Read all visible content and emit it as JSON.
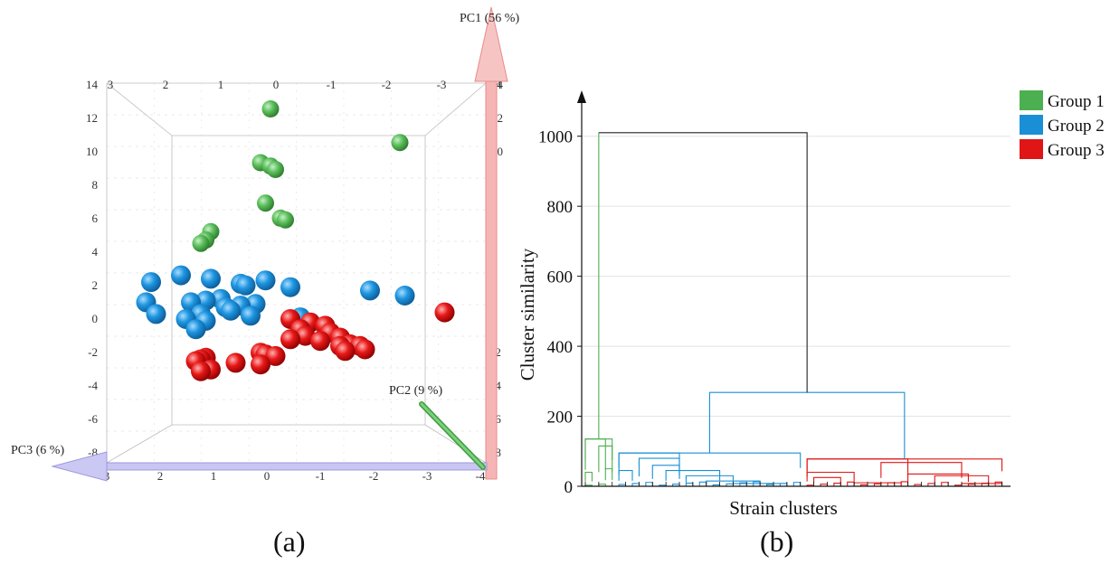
{
  "figure": {
    "panel_a_label": "(a)",
    "panel_b_label": "(b)"
  },
  "colors": {
    "group1": "#4caf50",
    "group2": "#1a8fd6",
    "group3": "#e01515",
    "dendro_root": "#222222",
    "pc1_arrow": "#f4a6a6",
    "pc2_arrow": "#5cb85c",
    "pc3_arrow": "#b9b5ee"
  },
  "chart_data": [
    {
      "type": "scatter",
      "subtype": "3d-pca",
      "axes": {
        "pc1": {
          "label": "PC1 (56 %)",
          "ticks": [
            "14",
            "12",
            "10",
            "8",
            "6",
            "4",
            "2",
            "0",
            "-2",
            "-4",
            "-6",
            "-8"
          ]
        },
        "pc2": {
          "label": "PC2 (9 %)",
          "ticks": [
            "3",
            "2",
            "1",
            "0",
            "-1",
            "-2",
            "-3",
            "-4"
          ]
        },
        "pc3": {
          "label": "PC3 (6 %)",
          "ticks": [
            "3",
            "2",
            "1",
            "0",
            "-1",
            "-2",
            "-3",
            "-4"
          ]
        }
      },
      "series": [
        {
          "name": "Group 1",
          "color": "#4caf50",
          "points": [
            [
              12.5,
              0.2
            ],
            [
              10.5,
              -2.4
            ],
            [
              9.3,
              0.4
            ],
            [
              9.1,
              0.2
            ],
            [
              8.9,
              0.1
            ],
            [
              6.9,
              0.3
            ],
            [
              6.0,
              0.0
            ],
            [
              5.9,
              -0.1
            ],
            [
              5.2,
              1.4
            ],
            [
              4.7,
              1.5
            ],
            [
              4.5,
              1.6
            ]
          ]
        },
        {
          "name": "Group 2",
          "color": "#1a8fd6",
          "points": [
            [
              2.6,
              2.0
            ],
            [
              2.4,
              1.4
            ],
            [
              2.2,
              2.6
            ],
            [
              2.1,
              0.8
            ],
            [
              2.3,
              0.3
            ],
            [
              2.0,
              0.7
            ],
            [
              1.9,
              -0.2
            ],
            [
              1.7,
              -1.8
            ],
            [
              1.4,
              -2.5
            ],
            [
              1.2,
              1.2
            ],
            [
              1.1,
              1.5
            ],
            [
              1.0,
              1.8
            ],
            [
              1.0,
              2.7
            ],
            [
              0.9,
              0.5
            ],
            [
              0.8,
              0.8
            ],
            [
              0.7,
              1.1
            ],
            [
              0.5,
              1.0
            ],
            [
              0.3,
              1.6
            ],
            [
              0.3,
              2.5
            ],
            [
              0.2,
              0.6
            ],
            [
              0.1,
              -0.4
            ],
            [
              0.0,
              1.9
            ],
            [
              -0.1,
              1.5
            ],
            [
              -0.6,
              1.7
            ]
          ]
        },
        {
          "name": "Group 3",
          "color": "#e01515",
          "points": [
            [
              0.4,
              -3.3
            ],
            [
              0.0,
              -0.2
            ],
            [
              -0.2,
              -0.6
            ],
            [
              -0.4,
              -0.9
            ],
            [
              -0.6,
              -0.4
            ],
            [
              -0.8,
              -1.0
            ],
            [
              -1.0,
              -0.5
            ],
            [
              -1.1,
              -1.2
            ],
            [
              -1.2,
              -0.2
            ],
            [
              -1.3,
              -0.8
            ],
            [
              -1.5,
              -1.4
            ],
            [
              -1.6,
              -1.2
            ],
            [
              -1.6,
              -1.6
            ],
            [
              -1.8,
              -1.7
            ],
            [
              -1.9,
              -1.3
            ],
            [
              -2.0,
              0.4
            ],
            [
              -2.1,
              0.3
            ],
            [
              -2.2,
              0.1
            ],
            [
              -2.3,
              1.5
            ],
            [
              -2.4,
              1.6
            ],
            [
              -2.5,
              1.7
            ],
            [
              -2.6,
              0.9
            ],
            [
              -2.7,
              0.4
            ],
            [
              -3.0,
              1.4
            ],
            [
              -3.1,
              1.6
            ]
          ]
        }
      ]
    },
    {
      "type": "dendrogram",
      "title": "",
      "xlabel": "Strain clusters",
      "ylabel": "Cluster similarity",
      "ylim": [
        0,
        1100
      ],
      "yticks": [
        0,
        200,
        400,
        600,
        800,
        1000
      ],
      "legend": {
        "placement": "top-right",
        "entries": [
          {
            "label": "Group 1",
            "color": "#4caf50"
          },
          {
            "label": "Group 2",
            "color": "#1a8fd6"
          },
          {
            "label": "Group 3",
            "color": "#e01515"
          }
        ]
      },
      "root_height": 1010,
      "group23_height": 268,
      "groups": [
        {
          "name": "Group 1",
          "color": "#4caf50",
          "height": 135,
          "leaf_count": 5
        },
        {
          "name": "Group 2",
          "color": "#1a8fd6",
          "height": 95,
          "leaf_count": 28
        },
        {
          "name": "Group 3",
          "color": "#e01515",
          "height": 78,
          "leaf_count": 30
        }
      ],
      "merges": [
        {
          "color": "#4caf50",
          "left": 0,
          "right": 3,
          "height": 135
        },
        {
          "color": "#4caf50",
          "left": 0,
          "right": 1,
          "height": 40
        },
        {
          "color": "#4caf50",
          "left": 2,
          "right": 4,
          "height": 115
        },
        {
          "color": "#4caf50",
          "left": 3,
          "right": 4,
          "height": 50
        },
        {
          "color": "#1a8fd6",
          "left": 5,
          "right": 14,
          "height": 95
        },
        {
          "color": "#1a8fd6",
          "left": 5,
          "right": 7,
          "height": 45
        },
        {
          "color": "#1a8fd6",
          "left": 8,
          "right": 14,
          "height": 80
        },
        {
          "color": "#1a8fd6",
          "left": 10,
          "right": 14,
          "height": 60
        },
        {
          "color": "#1a8fd6",
          "left": 12,
          "right": 20,
          "height": 45
        },
        {
          "color": "#1a8fd6",
          "left": 15,
          "right": 22,
          "height": 30
        },
        {
          "color": "#1a8fd6",
          "left": 18,
          "right": 26,
          "height": 15
        },
        {
          "color": "#1a8fd6",
          "left": 22,
          "right": 30,
          "height": 8
        },
        {
          "color": "#e01515",
          "left": 33,
          "right": 48,
          "height": 78
        },
        {
          "color": "#e01515",
          "left": 33,
          "right": 40,
          "height": 40
        },
        {
          "color": "#e01515",
          "left": 34,
          "right": 38,
          "height": 25
        },
        {
          "color": "#e01515",
          "left": 44,
          "right": 56,
          "height": 68
        },
        {
          "color": "#e01515",
          "left": 48,
          "right": 57,
          "height": 35
        },
        {
          "color": "#e01515",
          "left": 52,
          "right": 60,
          "height": 30
        },
        {
          "color": "#e01515",
          "left": 40,
          "right": 47,
          "height": 10
        },
        {
          "color": "#e01515",
          "left": 56,
          "right": 62,
          "height": 8
        }
      ]
    }
  ]
}
